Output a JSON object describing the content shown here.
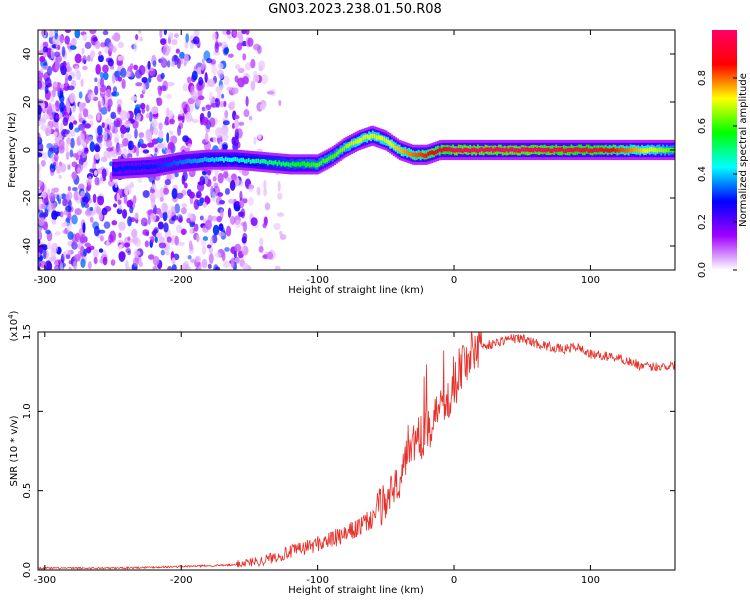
{
  "title": "GN03.2023.238.01.50.R08",
  "chart_data": [
    {
      "type": "heatmap",
      "xlabel": "Height of straight line (km)",
      "ylabel": "Frequency (Hz)",
      "xlim": [
        -305,
        162
      ],
      "ylim": [
        -50,
        50
      ],
      "x_ticks": [
        -300,
        -200,
        -100,
        0,
        100
      ],
      "y_ticks": [
        -40,
        -20,
        0,
        20,
        40
      ],
      "colorbar": {
        "label": "Normalized spectral amplitude",
        "range": [
          0.0,
          1.0
        ],
        "ticks": [
          "0.0",
          "0.2",
          "0.4",
          "0.6",
          "0.8"
        ],
        "tick_values": [
          0.0,
          0.2,
          0.4,
          0.6,
          0.8
        ],
        "colors": [
          "#ffffff",
          "#a000ff",
          "#0000ff",
          "#00ffff",
          "#00ff00",
          "#ffff00",
          "#ff0000",
          "#ff0066"
        ]
      },
      "ridge": {
        "x": [
          -250,
          -220,
          -200,
          -180,
          -160,
          -140,
          -120,
          -100,
          -90,
          -80,
          -70,
          -60,
          -50,
          -40,
          -30,
          -20,
          -10,
          0,
          50,
          100,
          162
        ],
        "frequency": [
          -8,
          -7,
          -5,
          -4,
          -4,
          -5,
          -6,
          -6,
          -3,
          1,
          4,
          6,
          4,
          0,
          -2,
          -2,
          0,
          0,
          0,
          0,
          0
        ],
        "peak_amplitude": [
          0.3,
          0.3,
          0.35,
          0.4,
          0.45,
          0.5,
          0.55,
          0.6,
          0.6,
          0.65,
          0.7,
          0.7,
          0.7,
          0.75,
          0.8,
          0.85,
          0.9,
          1.0,
          1.0,
          0.95,
          0.6
        ]
      },
      "noise_region_x": [
        -305,
        -170
      ],
      "grid": false
    },
    {
      "type": "line",
      "xlabel": "Height of straight line (km)",
      "ylabel": "SNR (10 * v/v)",
      "y_multiplier": "(x10",
      "y_multiplier_exp": "4",
      "y_multiplier_close": ")",
      "xlim": [
        -305,
        162
      ],
      "ylim": [
        0,
        1.5
      ],
      "x_ticks": [
        -300,
        -200,
        -100,
        0,
        100
      ],
      "y_ticks": [
        "0.0",
        "0.5",
        "1.0",
        "1.5"
      ],
      "y_tick_values": [
        0.0,
        0.5,
        1.0,
        1.5
      ],
      "series_color": "#e8302a",
      "series": [
        {
          "x": [
            -305,
            -250,
            -200,
            -160,
            -140,
            -120,
            -100,
            -80,
            -60,
            -50,
            -40,
            -35,
            -30,
            -25,
            -20,
            -15,
            -10,
            -5,
            0,
            10,
            20,
            30,
            40,
            50,
            60,
            70,
            80,
            90,
            100,
            120,
            140,
            162
          ],
          "values": [
            0.01,
            0.01,
            0.02,
            0.03,
            0.05,
            0.1,
            0.15,
            0.2,
            0.3,
            0.4,
            0.55,
            0.7,
            0.8,
            0.75,
            0.9,
            0.85,
            1.0,
            1.05,
            1.15,
            1.3,
            1.4,
            1.42,
            1.45,
            1.45,
            1.42,
            1.4,
            1.38,
            1.4,
            1.35,
            1.33,
            1.27,
            1.28
          ]
        }
      ],
      "grid": false
    }
  ]
}
